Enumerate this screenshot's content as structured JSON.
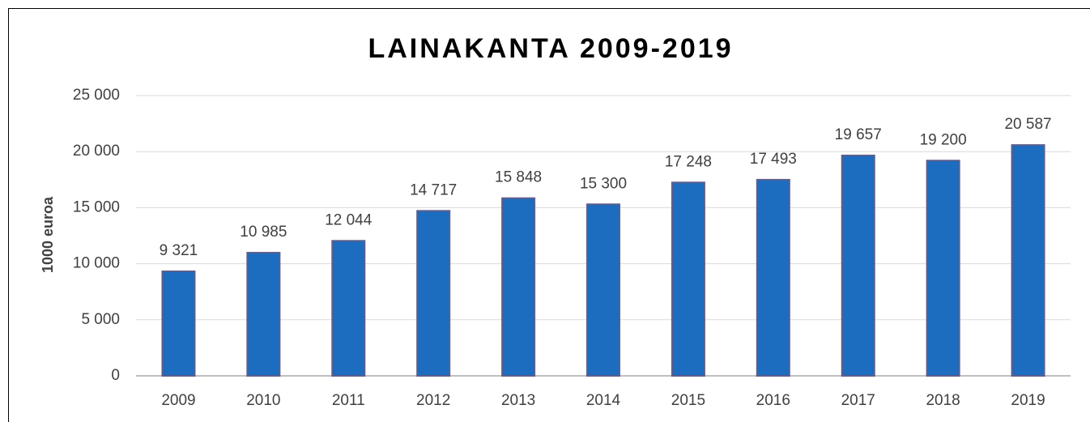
{
  "chart_data": {
    "type": "bar",
    "title": "LAINAKANTA 2009-2019",
    "y_label": "1000 euroa",
    "categories": [
      "2009",
      "2010",
      "2011",
      "2012",
      "2013",
      "2014",
      "2015",
      "2016",
      "2017",
      "2018",
      "2019"
    ],
    "values": [
      9321,
      10985,
      12044,
      14717,
      15848,
      15300,
      17248,
      17493,
      19657,
      19200,
      20587
    ],
    "value_labels": [
      "9 321",
      "10 985",
      "12 044",
      "14 717",
      "15 848",
      "15 300",
      "17 248",
      "17 493",
      "19 657",
      "19 200",
      "20 587"
    ],
    "color": "#1c6cc0",
    "ylim": [
      0,
      25000
    ],
    "yticks": [
      0,
      {
        "value": 5000,
        "label": "5 000"
      },
      {
        "value": 10000,
        "label": "10 000"
      },
      {
        "value": 15000,
        "label": "15 000"
      },
      {
        "value": 20000,
        "label": "20 000"
      },
      {
        "value": 25000,
        "label": "25 000"
      }
    ],
    "grid": true
  }
}
